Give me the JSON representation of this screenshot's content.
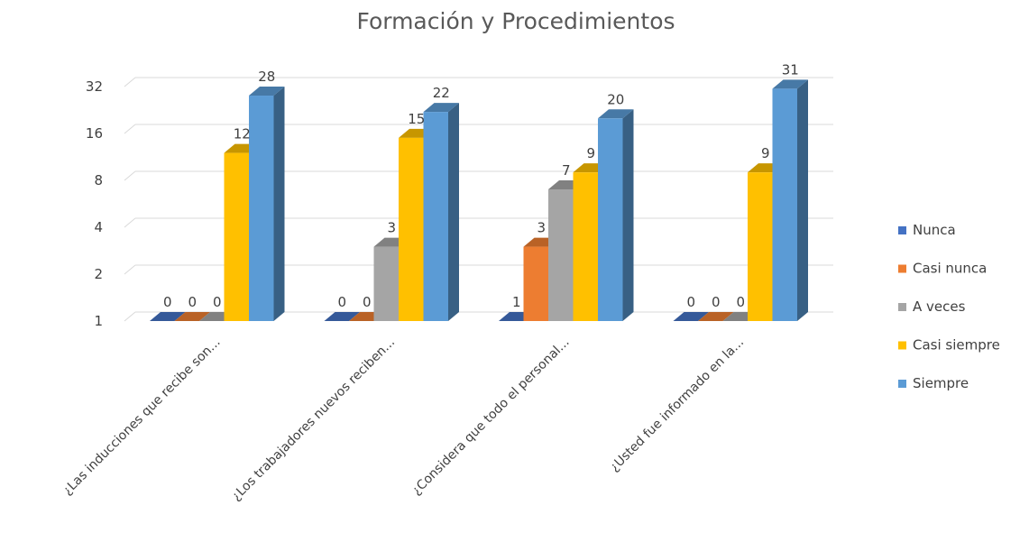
{
  "chart_data": {
    "type": "bar",
    "title": "Formación y Procedimientos",
    "xlabel": "",
    "ylabel": "",
    "scale": "log2",
    "ylim": [
      1,
      32
    ],
    "yticks": [
      "1",
      "2",
      "4",
      "8",
      "16",
      "32"
    ],
    "grid": true,
    "legend_position": "right",
    "categories": [
      "¿Las inducciones que recibe son...",
      "¿Los trabajadores nuevos reciben...",
      "¿Considera que todo el personal...",
      "¿Usted fue informado en la..."
    ],
    "series": [
      {
        "name": "Nunca",
        "color": "#4472C4",
        "values": [
          0,
          0,
          1,
          0
        ]
      },
      {
        "name": "Casi nunca",
        "color": "#ED7D31",
        "values": [
          0,
          0,
          3,
          0
        ]
      },
      {
        "name": "A veces",
        "color": "#A5A5A5",
        "values": [
          0,
          3,
          7,
          0
        ]
      },
      {
        "name": "Casi siempre",
        "color": "#FFC000",
        "values": [
          12,
          15,
          9,
          9
        ]
      },
      {
        "name": "Siempre",
        "color": "#5B9BD5",
        "values": [
          28,
          22,
          20,
          31
        ]
      }
    ]
  }
}
